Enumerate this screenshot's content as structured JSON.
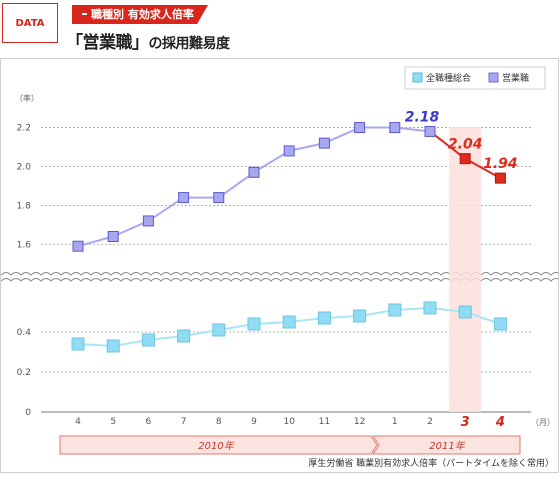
{
  "header": {
    "badge": "DATA",
    "tag": "職種別 有効求人倍率",
    "title_main": "「営業職」",
    "title_sub": "の採用難易度"
  },
  "legend": {
    "series1": "全職種総合",
    "series2": "営業職"
  },
  "axis": {
    "y_unit": "（率）",
    "x_unit": "（月）"
  },
  "years": {
    "y2010": "2010年",
    "y2011": "2011年"
  },
  "source": "厚生労働省 職業別有効求人倍率（パートタイムを除く常用）",
  "chart_data": {
    "type": "line",
    "categories": [
      "4",
      "5",
      "6",
      "7",
      "8",
      "9",
      "10",
      "11",
      "12",
      "1",
      "2",
      "3",
      "4"
    ],
    "yticks_upper": [
      "1.6",
      "1.8",
      "2.0",
      "2.2"
    ],
    "yticks_lower": [
      "0",
      "0.2",
      "0.4"
    ],
    "ylim_upper": [
      1.55,
      2.28
    ],
    "ylim_lower": [
      0,
      0.56
    ],
    "broken_axis": true,
    "grid": true,
    "legend_position": "top-right",
    "highlight_categories": [
      "3"
    ],
    "series": [
      {
        "name": "全職種総合",
        "color": "#8fdcf4",
        "values": [
          0.34,
          0.33,
          0.36,
          0.38,
          0.41,
          0.44,
          0.45,
          0.47,
          0.48,
          0.51,
          0.52,
          0.5,
          0.44
        ]
      },
      {
        "name": "営業職",
        "color": "#a7a7f2",
        "values": [
          1.59,
          1.64,
          1.72,
          1.84,
          1.84,
          1.97,
          2.08,
          2.12,
          2.2,
          2.2,
          2.18,
          2.04,
          1.94
        ]
      }
    ],
    "data_labels": {
      "2": "2.18",
      "3": "2.04",
      "4": "1.94"
    },
    "highlight_color": "#e02a1e"
  }
}
